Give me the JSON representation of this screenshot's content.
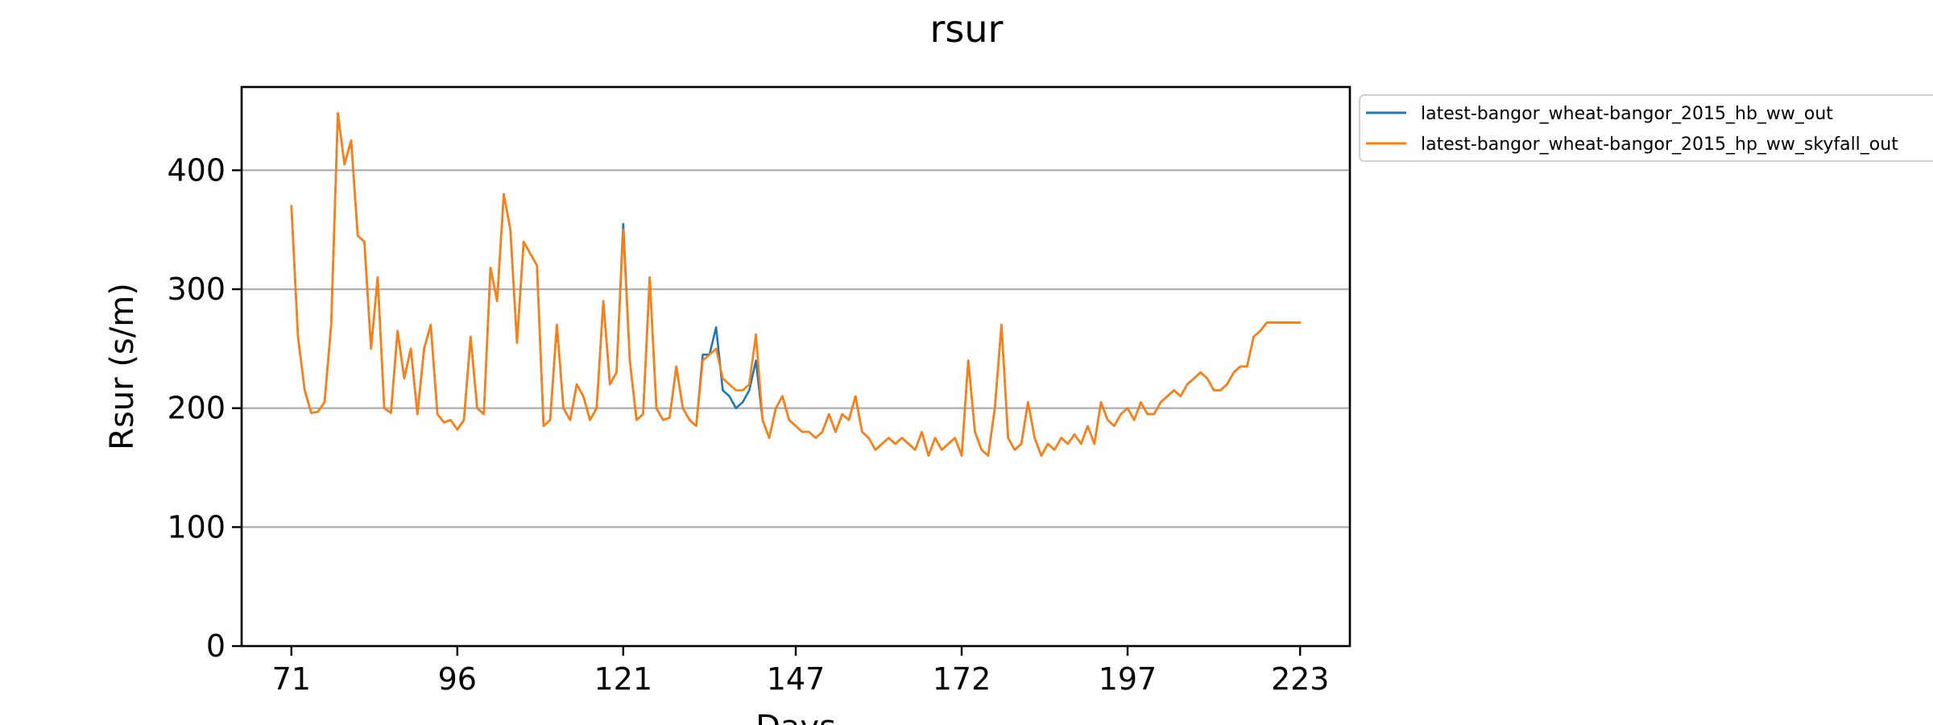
{
  "chart_data": {
    "type": "line",
    "title": "rsur",
    "xlabel": "Days",
    "ylabel": "Rsur (s/m)",
    "xlim": [
      63.5,
      230.5
    ],
    "ylim": [
      0,
      470
    ],
    "xticks": [
      71,
      96,
      121,
      147,
      172,
      197,
      223
    ],
    "xtick_labels": [
      "71",
      "96",
      "121",
      "147",
      "172",
      "197",
      "223"
    ],
    "yticks": [
      0,
      100,
      200,
      300,
      400
    ],
    "ytick_labels": [
      "0",
      "100",
      "200",
      "300",
      "400"
    ],
    "grid": "horizontal",
    "legend_position": "outside-top-right",
    "series": [
      {
        "name": "latest-bangor_wheat-bangor_2015_hb_ww_out",
        "color": "#1f77b4",
        "points": [
          [
            71,
            370
          ],
          [
            72,
            260
          ],
          [
            73,
            215
          ],
          [
            74,
            196
          ],
          [
            75,
            197
          ],
          [
            76,
            205
          ],
          [
            77,
            270
          ],
          [
            78,
            448
          ],
          [
            79,
            405
          ],
          [
            80,
            425
          ],
          [
            81,
            345
          ],
          [
            82,
            340
          ],
          [
            83,
            250
          ],
          [
            84,
            310
          ],
          [
            85,
            200
          ],
          [
            86,
            196
          ],
          [
            87,
            265
          ],
          [
            88,
            225
          ],
          [
            89,
            250
          ],
          [
            90,
            195
          ],
          [
            91,
            250
          ],
          [
            92,
            270
          ],
          [
            93,
            195
          ],
          [
            94,
            188
          ],
          [
            95,
            190
          ],
          [
            96,
            182
          ],
          [
            97,
            190
          ],
          [
            98,
            260
          ],
          [
            99,
            200
          ],
          [
            100,
            195
          ],
          [
            101,
            318
          ],
          [
            102,
            290
          ],
          [
            103,
            380
          ],
          [
            104,
            350
          ],
          [
            105,
            255
          ],
          [
            106,
            340
          ],
          [
            107,
            330
          ],
          [
            108,
            320
          ],
          [
            109,
            185
          ],
          [
            110,
            190
          ],
          [
            111,
            270
          ],
          [
            112,
            200
          ],
          [
            113,
            190
          ],
          [
            114,
            220
          ],
          [
            115,
            210
          ],
          [
            116,
            190
          ],
          [
            117,
            200
          ],
          [
            118,
            290
          ],
          [
            119,
            220
          ],
          [
            120,
            230
          ],
          [
            121,
            355
          ],
          [
            122,
            240
          ],
          [
            123,
            190
          ],
          [
            124,
            195
          ],
          [
            125,
            310
          ],
          [
            126,
            200
          ],
          [
            127,
            190
          ],
          [
            128,
            192
          ],
          [
            129,
            235
          ],
          [
            130,
            200
          ],
          [
            131,
            190
          ],
          [
            132,
            185
          ],
          [
            133,
            245
          ],
          [
            134,
            245
          ],
          [
            135,
            268
          ],
          [
            136,
            215
          ],
          [
            137,
            210
          ],
          [
            138,
            200
          ],
          [
            139,
            205
          ],
          [
            140,
            215
          ],
          [
            141,
            240
          ],
          [
            142,
            190
          ],
          [
            143,
            175
          ],
          [
            144,
            200
          ],
          [
            145,
            210
          ],
          [
            146,
            190
          ],
          [
            147,
            185
          ],
          [
            148,
            180
          ],
          [
            149,
            180
          ],
          [
            150,
            175
          ],
          [
            151,
            180
          ],
          [
            152,
            195
          ],
          [
            153,
            180
          ],
          [
            154,
            195
          ],
          [
            155,
            190
          ],
          [
            156,
            210
          ],
          [
            157,
            180
          ],
          [
            158,
            175
          ],
          [
            159,
            165
          ],
          [
            160,
            170
          ],
          [
            161,
            175
          ],
          [
            162,
            170
          ],
          [
            163,
            175
          ],
          [
            164,
            170
          ],
          [
            165,
            165
          ],
          [
            166,
            180
          ],
          [
            167,
            160
          ],
          [
            168,
            175
          ],
          [
            169,
            165
          ],
          [
            170,
            170
          ],
          [
            171,
            175
          ],
          [
            172,
            160
          ],
          [
            173,
            240
          ],
          [
            174,
            180
          ],
          [
            175,
            165
          ],
          [
            176,
            160
          ],
          [
            177,
            200
          ],
          [
            178,
            270
          ],
          [
            179,
            175
          ],
          [
            180,
            165
          ],
          [
            181,
            170
          ],
          [
            182,
            205
          ],
          [
            183,
            175
          ],
          [
            184,
            160
          ],
          [
            185,
            170
          ],
          [
            186,
            165
          ],
          [
            187,
            175
          ],
          [
            188,
            170
          ],
          [
            189,
            178
          ],
          [
            190,
            170
          ],
          [
            191,
            185
          ],
          [
            192,
            170
          ],
          [
            193,
            205
          ],
          [
            194,
            190
          ],
          [
            195,
            185
          ],
          [
            196,
            195
          ],
          [
            197,
            200
          ],
          [
            198,
            190
          ],
          [
            199,
            205
          ],
          [
            200,
            195
          ],
          [
            201,
            195
          ],
          [
            202,
            205
          ],
          [
            203,
            210
          ],
          [
            204,
            215
          ],
          [
            205,
            210
          ],
          [
            206,
            220
          ],
          [
            207,
            225
          ],
          [
            208,
            230
          ],
          [
            209,
            225
          ],
          [
            210,
            215
          ],
          [
            211,
            215
          ],
          [
            212,
            220
          ],
          [
            213,
            230
          ],
          [
            214,
            235
          ],
          [
            215,
            235
          ],
          [
            216,
            260
          ],
          [
            217,
            265
          ],
          [
            218,
            272
          ],
          [
            219,
            272
          ],
          [
            220,
            272
          ],
          [
            221,
            272
          ],
          [
            222,
            272
          ],
          [
            223,
            272
          ]
        ]
      },
      {
        "name": "latest-bangor_wheat-bangor_2015_hp_ww_skyfall_out",
        "color": "#ff7f0e",
        "points": [
          [
            71,
            370
          ],
          [
            72,
            260
          ],
          [
            73,
            215
          ],
          [
            74,
            196
          ],
          [
            75,
            197
          ],
          [
            76,
            205
          ],
          [
            77,
            270
          ],
          [
            78,
            448
          ],
          [
            79,
            405
          ],
          [
            80,
            425
          ],
          [
            81,
            345
          ],
          [
            82,
            340
          ],
          [
            83,
            250
          ],
          [
            84,
            310
          ],
          [
            85,
            200
          ],
          [
            86,
            196
          ],
          [
            87,
            265
          ],
          [
            88,
            225
          ],
          [
            89,
            250
          ],
          [
            90,
            195
          ],
          [
            91,
            250
          ],
          [
            92,
            270
          ],
          [
            93,
            195
          ],
          [
            94,
            188
          ],
          [
            95,
            190
          ],
          [
            96,
            182
          ],
          [
            97,
            190
          ],
          [
            98,
            260
          ],
          [
            99,
            200
          ],
          [
            100,
            195
          ],
          [
            101,
            318
          ],
          [
            102,
            290
          ],
          [
            103,
            380
          ],
          [
            104,
            350
          ],
          [
            105,
            255
          ],
          [
            106,
            340
          ],
          [
            107,
            330
          ],
          [
            108,
            320
          ],
          [
            109,
            185
          ],
          [
            110,
            190
          ],
          [
            111,
            270
          ],
          [
            112,
            200
          ],
          [
            113,
            190
          ],
          [
            114,
            220
          ],
          [
            115,
            210
          ],
          [
            116,
            190
          ],
          [
            117,
            200
          ],
          [
            118,
            290
          ],
          [
            119,
            220
          ],
          [
            120,
            230
          ],
          [
            121,
            350
          ],
          [
            122,
            240
          ],
          [
            123,
            190
          ],
          [
            124,
            195
          ],
          [
            125,
            310
          ],
          [
            126,
            200
          ],
          [
            127,
            190
          ],
          [
            128,
            192
          ],
          [
            129,
            235
          ],
          [
            130,
            200
          ],
          [
            131,
            190
          ],
          [
            132,
            185
          ],
          [
            133,
            240
          ],
          [
            134,
            245
          ],
          [
            135,
            250
          ],
          [
            136,
            225
          ],
          [
            137,
            220
          ],
          [
            138,
            215
          ],
          [
            139,
            215
          ],
          [
            140,
            220
          ],
          [
            141,
            262
          ],
          [
            142,
            190
          ],
          [
            143,
            175
          ],
          [
            144,
            200
          ],
          [
            145,
            210
          ],
          [
            146,
            190
          ],
          [
            147,
            185
          ],
          [
            148,
            180
          ],
          [
            149,
            180
          ],
          [
            150,
            175
          ],
          [
            151,
            180
          ],
          [
            152,
            195
          ],
          [
            153,
            180
          ],
          [
            154,
            195
          ],
          [
            155,
            190
          ],
          [
            156,
            210
          ],
          [
            157,
            180
          ],
          [
            158,
            175
          ],
          [
            159,
            165
          ],
          [
            160,
            170
          ],
          [
            161,
            175
          ],
          [
            162,
            170
          ],
          [
            163,
            175
          ],
          [
            164,
            170
          ],
          [
            165,
            165
          ],
          [
            166,
            180
          ],
          [
            167,
            160
          ],
          [
            168,
            175
          ],
          [
            169,
            165
          ],
          [
            170,
            170
          ],
          [
            171,
            175
          ],
          [
            172,
            160
          ],
          [
            173,
            240
          ],
          [
            174,
            180
          ],
          [
            175,
            165
          ],
          [
            176,
            160
          ],
          [
            177,
            200
          ],
          [
            178,
            270
          ],
          [
            179,
            175
          ],
          [
            180,
            165
          ],
          [
            181,
            170
          ],
          [
            182,
            205
          ],
          [
            183,
            175
          ],
          [
            184,
            160
          ],
          [
            185,
            170
          ],
          [
            186,
            165
          ],
          [
            187,
            175
          ],
          [
            188,
            170
          ],
          [
            189,
            178
          ],
          [
            190,
            170
          ],
          [
            191,
            185
          ],
          [
            192,
            170
          ],
          [
            193,
            205
          ],
          [
            194,
            190
          ],
          [
            195,
            185
          ],
          [
            196,
            195
          ],
          [
            197,
            200
          ],
          [
            198,
            190
          ],
          [
            199,
            205
          ],
          [
            200,
            195
          ],
          [
            201,
            195
          ],
          [
            202,
            205
          ],
          [
            203,
            210
          ],
          [
            204,
            215
          ],
          [
            205,
            210
          ],
          [
            206,
            220
          ],
          [
            207,
            225
          ],
          [
            208,
            230
          ],
          [
            209,
            225
          ],
          [
            210,
            215
          ],
          [
            211,
            215
          ],
          [
            212,
            220
          ],
          [
            213,
            230
          ],
          [
            214,
            235
          ],
          [
            215,
            235
          ],
          [
            216,
            260
          ],
          [
            217,
            265
          ],
          [
            218,
            272
          ],
          [
            219,
            272
          ],
          [
            220,
            272
          ],
          [
            221,
            272
          ],
          [
            222,
            272
          ],
          [
            223,
            272
          ]
        ]
      }
    ]
  }
}
